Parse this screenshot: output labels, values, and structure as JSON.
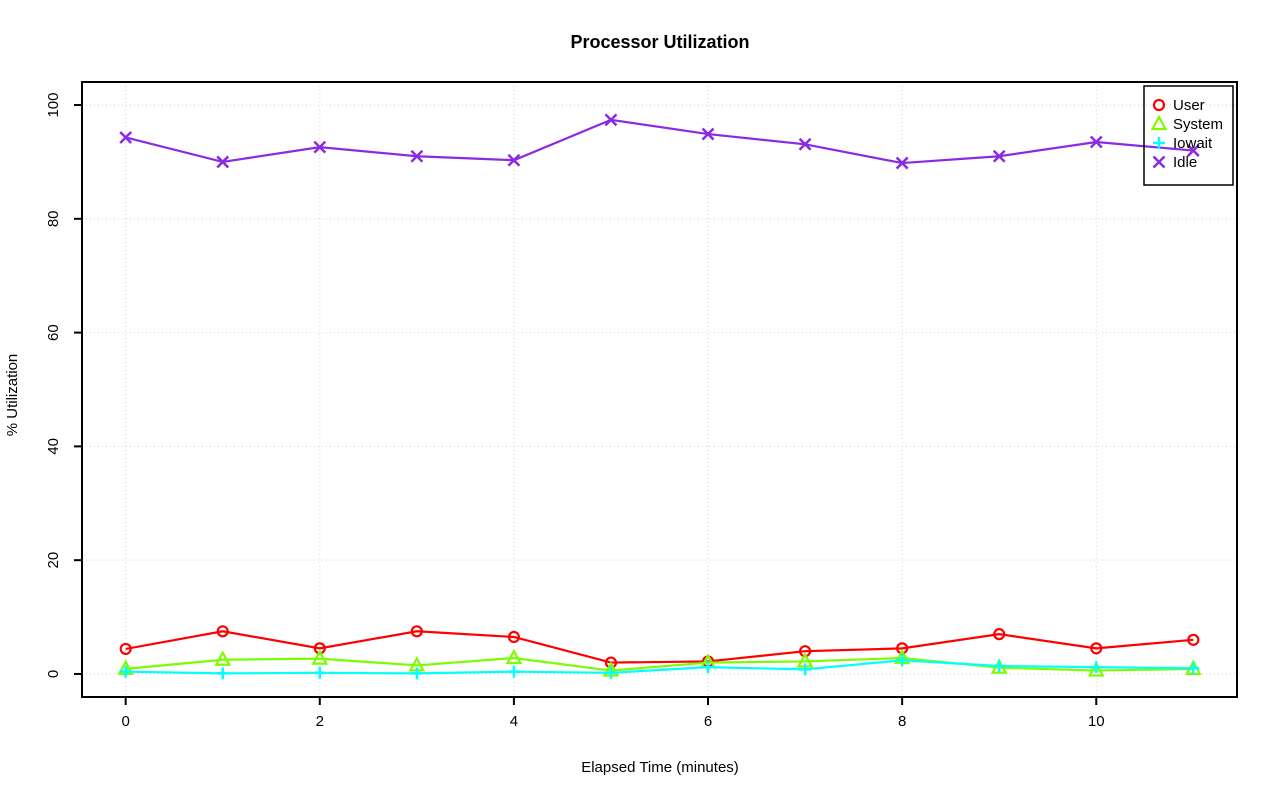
{
  "chart_data": {
    "type": "line",
    "title": "Processor Utilization",
    "xlabel": "Elapsed Time (minutes)",
    "ylabel": "% Utilization",
    "x": [
      0,
      1,
      2,
      3,
      4,
      5,
      6,
      7,
      8,
      9,
      10,
      11
    ],
    "xlim": [
      -0.45,
      11.45
    ],
    "ylim": [
      -4.05,
      104.05
    ],
    "xticks": [
      0,
      2,
      4,
      6,
      8,
      10
    ],
    "yticks": [
      0,
      20,
      40,
      60,
      80,
      100
    ],
    "grid": true,
    "grid_style": "dotted",
    "grid_color": "#cfcfcf",
    "axis_color": "#000000",
    "legend_position": "top-right",
    "series": [
      {
        "name": "User",
        "color": "#ff0000",
        "marker": "circle",
        "values": [
          4.4,
          7.5,
          4.5,
          7.5,
          6.5,
          2.0,
          2.2,
          4.0,
          4.5,
          7.0,
          4.5,
          6.0
        ]
      },
      {
        "name": "System",
        "color": "#7cfc00",
        "marker": "triangle",
        "values": [
          0.9,
          2.5,
          2.7,
          1.5,
          2.8,
          0.6,
          2.0,
          2.2,
          2.8,
          1.1,
          0.6,
          0.9
        ]
      },
      {
        "name": "Iowait",
        "color": "#00ffff",
        "marker": "plus",
        "values": [
          0.4,
          0.1,
          0.2,
          0.1,
          0.4,
          0.2,
          1.2,
          0.8,
          2.4,
          1.4,
          1.2,
          1.0
        ]
      },
      {
        "name": "Idle",
        "color": "#8a2be2",
        "marker": "x",
        "values": [
          94.3,
          90.0,
          92.6,
          91.0,
          90.3,
          97.4,
          94.9,
          93.1,
          89.8,
          91.0,
          93.5,
          92.0
        ]
      }
    ]
  }
}
